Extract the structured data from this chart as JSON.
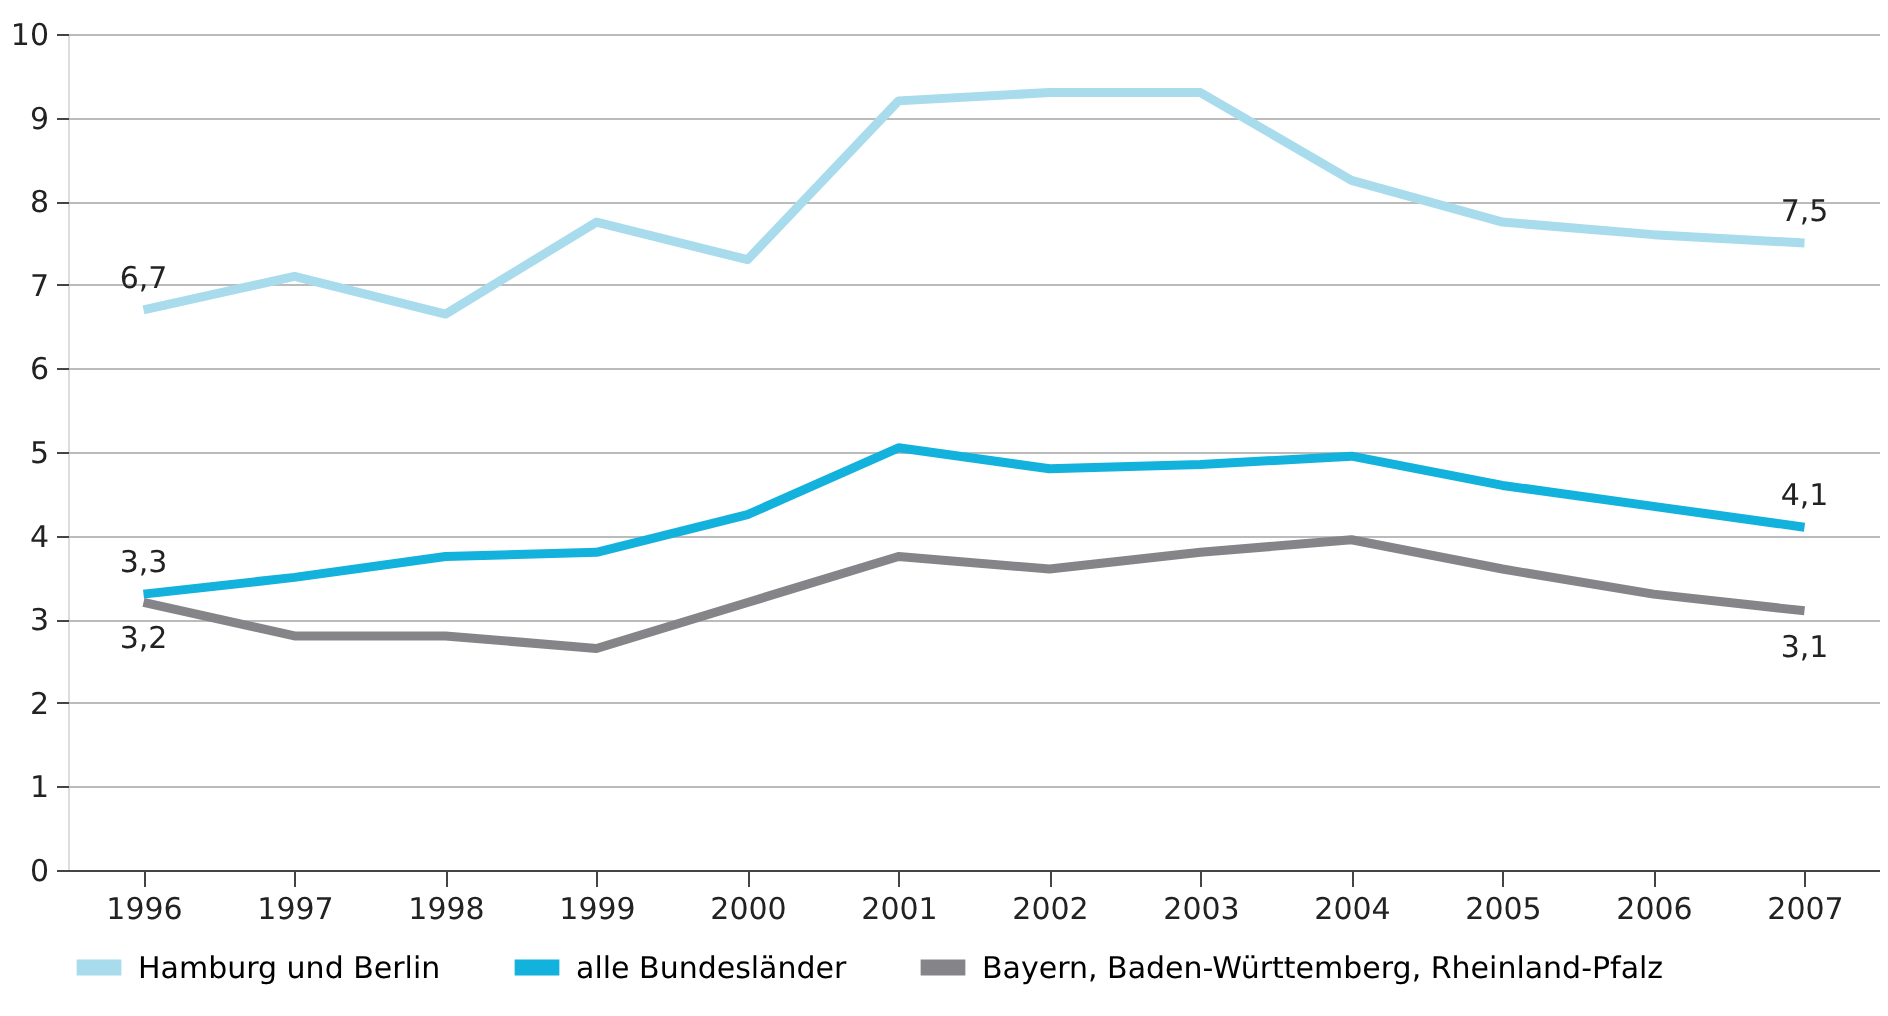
{
  "chart_data": {
    "type": "line",
    "categories": [
      "1996",
      "1997",
      "1998",
      "1999",
      "2000",
      "2001",
      "2002",
      "2003",
      "2004",
      "2005",
      "2006",
      "2007"
    ],
    "series": [
      {
        "name": "Hamburg und Berlin",
        "color": "#a8dcec",
        "values": [
          6.7,
          7.1,
          6.65,
          7.75,
          7.3,
          9.2,
          9.3,
          9.3,
          8.25,
          7.75,
          7.6,
          7.5
        ],
        "value_labels": [
          "6,7",
          null,
          null,
          null,
          null,
          null,
          null,
          null,
          null,
          null,
          null,
          "7,5"
        ]
      },
      {
        "name": "alle Bundesländer",
        "color": "#12b2dc",
        "values": [
          3.3,
          3.5,
          3.75,
          3.8,
          4.25,
          5.05,
          4.8,
          4.85,
          4.95,
          4.6,
          4.35,
          4.1
        ],
        "value_labels": [
          "3,3",
          null,
          null,
          null,
          null,
          null,
          null,
          null,
          null,
          null,
          null,
          "4,1"
        ]
      },
      {
        "name": "Bayern, Baden-Württemberg, Rheinland-Pfalz",
        "color": "#858589",
        "values": [
          3.2,
          2.8,
          2.8,
          2.65,
          3.2,
          3.75,
          3.6,
          3.8,
          3.95,
          3.6,
          3.3,
          3.1
        ],
        "value_labels": [
          "3,2",
          null,
          null,
          null,
          null,
          null,
          null,
          null,
          null,
          null,
          null,
          "3,1"
        ]
      }
    ],
    "ylim": [
      0,
      10
    ],
    "yticks": [
      0,
      1,
      2,
      3,
      4,
      5,
      6,
      7,
      8,
      9,
      10
    ],
    "grid": "y",
    "legend": "bottom",
    "marker": "none",
    "line_style": "solid"
  }
}
